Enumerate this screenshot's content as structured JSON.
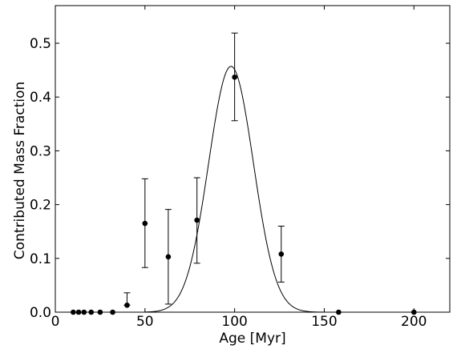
{
  "chart_data": {
    "type": "scatter",
    "title": "",
    "xlabel": "Age [Myr]",
    "ylabel": "Contributed Mass Fraction",
    "xlim": [
      0,
      220
    ],
    "ylim": [
      0.0,
      0.57
    ],
    "xticks": [
      0,
      50,
      100,
      150,
      200
    ],
    "xtick_labels": [
      "0",
      "50",
      "100",
      "150",
      "200"
    ],
    "yticks": [
      0.0,
      0.1,
      0.2,
      0.3,
      0.4,
      0.5
    ],
    "ytick_labels": [
      "0.0",
      "0.1",
      "0.2",
      "0.3",
      "0.4",
      "0.5"
    ],
    "grid": false,
    "series": [
      {
        "type": "scatter-errorbar",
        "x": [
          10,
          13,
          16,
          20,
          25,
          32,
          40,
          50,
          63,
          79,
          100,
          126,
          158,
          200
        ],
        "y": [
          0,
          0,
          0,
          0,
          0,
          0,
          0.013,
          0.165,
          0.103,
          0.171,
          0.437,
          0.108,
          0,
          0
        ],
        "yerr_low": [
          0,
          0,
          0,
          0,
          0,
          0,
          0,
          0.082,
          0.088,
          0.08,
          0.081,
          0.052,
          0,
          0
        ],
        "yerr_high": [
          0,
          0,
          0,
          0,
          0,
          0,
          0.023,
          0.083,
          0.088,
          0.079,
          0.082,
          0.052,
          0,
          0
        ]
      },
      {
        "type": "line",
        "function": "gaussian",
        "amplitude": 0.457,
        "mean": 98,
        "sigma": 12.5,
        "x_range": [
          50,
          155
        ]
      }
    ]
  }
}
